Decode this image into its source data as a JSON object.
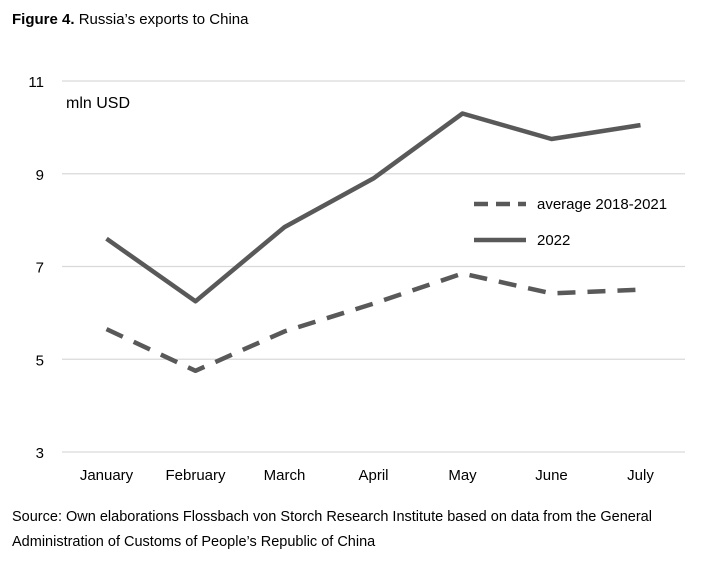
{
  "figure": {
    "label": "Figure 4.",
    "title": "Russia’s exports to China"
  },
  "source": "Source: Own elaborations Flossbach von Storch Research Institute based on data from the General Administration of Customs of People’s Republic of China",
  "chart_data": {
    "type": "line",
    "title": "",
    "xlabel": "",
    "ylabel": "",
    "unit_label": "mln USD",
    "categories": [
      "January",
      "February",
      "March",
      "April",
      "May",
      "June",
      "July"
    ],
    "ylim": [
      3,
      11
    ],
    "yticks": [
      3,
      5,
      7,
      9,
      11
    ],
    "grid": true,
    "legend_position": "right",
    "series": [
      {
        "name": "average 2018-2021",
        "style": "dashed",
        "color": "#595959",
        "values": [
          5.65,
          4.75,
          5.6,
          6.2,
          6.85,
          6.42,
          6.5
        ]
      },
      {
        "name": "2022",
        "style": "solid",
        "color": "#595959",
        "values": [
          7.6,
          6.25,
          7.85,
          8.9,
          10.3,
          9.75,
          10.05
        ]
      }
    ]
  }
}
